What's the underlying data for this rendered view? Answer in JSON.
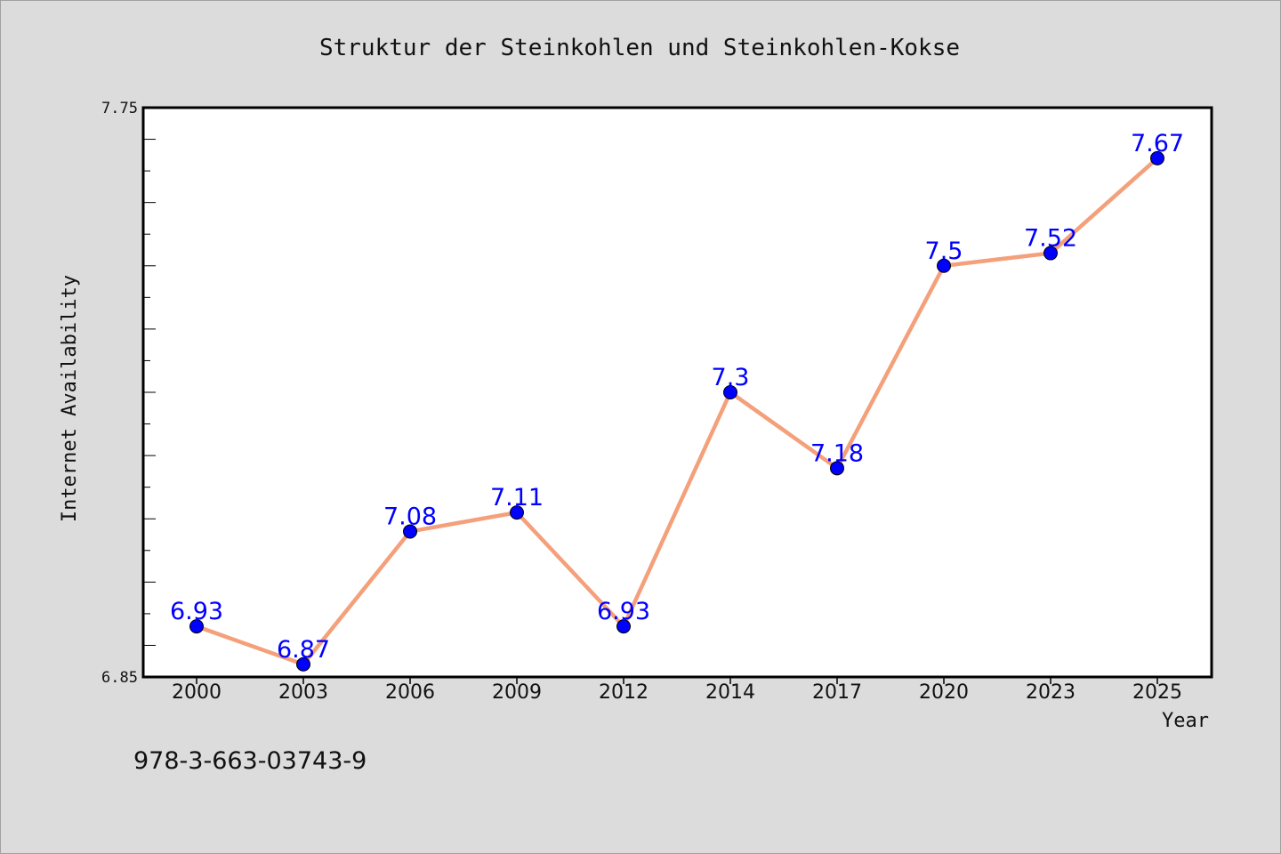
{
  "chart_data": {
    "type": "line",
    "title": "Struktur der Steinkohlen und Steinkohlen-Kokse",
    "xlabel": "Year",
    "ylabel": "Internet Availability",
    "categories": [
      "2000",
      "2003",
      "2006",
      "2009",
      "2012",
      "2014",
      "2017",
      "2020",
      "2023",
      "2025"
    ],
    "series": [
      {
        "values": [
          6.93,
          6.87,
          7.08,
          7.11,
          6.93,
          7.3,
          7.18,
          7.5,
          7.52,
          7.67
        ],
        "labels": [
          "6.93",
          "6.87",
          "7.08",
          "7.11",
          "6.93",
          "7.3",
          "7.18",
          "7.5",
          "7.52",
          "7.67"
        ]
      }
    ],
    "ylim": [
      6.85,
      7.75
    ],
    "y_tick_labels": [
      "6.85",
      "7.75"
    ],
    "grid": false,
    "colors": {
      "line": "#f4a07a",
      "marker": "#0000ff",
      "data_label": "#0000ff",
      "background": "#dcdcdc",
      "plot_background": "#ffffff"
    }
  },
  "annotation": "978-3-663-03743-9"
}
